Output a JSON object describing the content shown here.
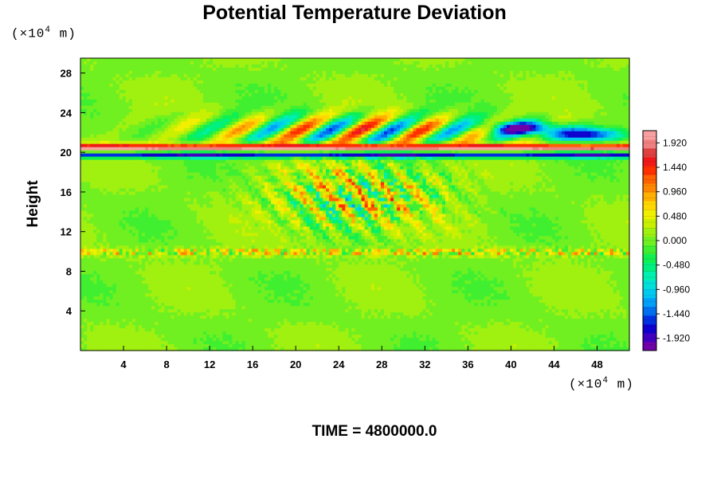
{
  "title": "Potential Temperature Deviation",
  "footer": "TIME = 4800000.0",
  "chart_data": {
    "type": "heatmap",
    "title": "Potential Temperature Deviation",
    "ylabel": "Height",
    "x_unit": "(×10",
    "x_unit_exp": "4",
    "x_unit_tail": " m)",
    "y_unit": "(×10",
    "y_unit_exp": "4",
    "y_unit_tail": " m)",
    "xlim": [
      0,
      51
    ],
    "ylim": [
      0,
      29.5
    ],
    "x_ticks": [
      4,
      8,
      12,
      16,
      20,
      24,
      28,
      32,
      36,
      40,
      44,
      48
    ],
    "y_ticks": [
      4,
      8,
      12,
      16,
      20,
      24,
      28
    ],
    "colorbar": {
      "range": [
        -2.16,
        2.16
      ],
      "levels": 36,
      "labels": [
        "1.920",
        "1.440",
        "0.960",
        "0.480",
        "0.000",
        "-0.480",
        "-0.960",
        "-1.440",
        "-1.920"
      ],
      "colors": [
        "#7000a8",
        "#4000c0",
        "#1000d0",
        "#0030e0",
        "#0070f0",
        "#00a0f8",
        "#00c8f0",
        "#00e0d8",
        "#00f0b0",
        "#00f080",
        "#10f050",
        "#40f030",
        "#70f020",
        "#a0f010",
        "#c8f000",
        "#f0f000",
        "#ffd800",
        "#ffb000",
        "#ff8800",
        "#ff6000",
        "#ff3000",
        "#f01818",
        "#e04040",
        "#f08080",
        "#f8a0a0"
      ]
    },
    "background_value": 0.05,
    "features": [
      {
        "kind": "band",
        "name": "upper warm band",
        "y": 20.4,
        "value": 2.1
      },
      {
        "kind": "band",
        "name": "upper cold band",
        "y": 19.8,
        "value": -2.0
      },
      {
        "kind": "band",
        "name": "tropopause band",
        "y": 9.9,
        "value": 0.4
      },
      {
        "kind": "patch",
        "name": "cold patch 1",
        "x": 41,
        "y": 22.4,
        "value": -2.0
      },
      {
        "kind": "patch",
        "name": "cold patch 2",
        "x": 47,
        "y": 21.8,
        "value": -1.8
      },
      {
        "kind": "patch",
        "name": "warm region center",
        "x": 26,
        "y": 15.5,
        "value": 1.8
      }
    ]
  }
}
